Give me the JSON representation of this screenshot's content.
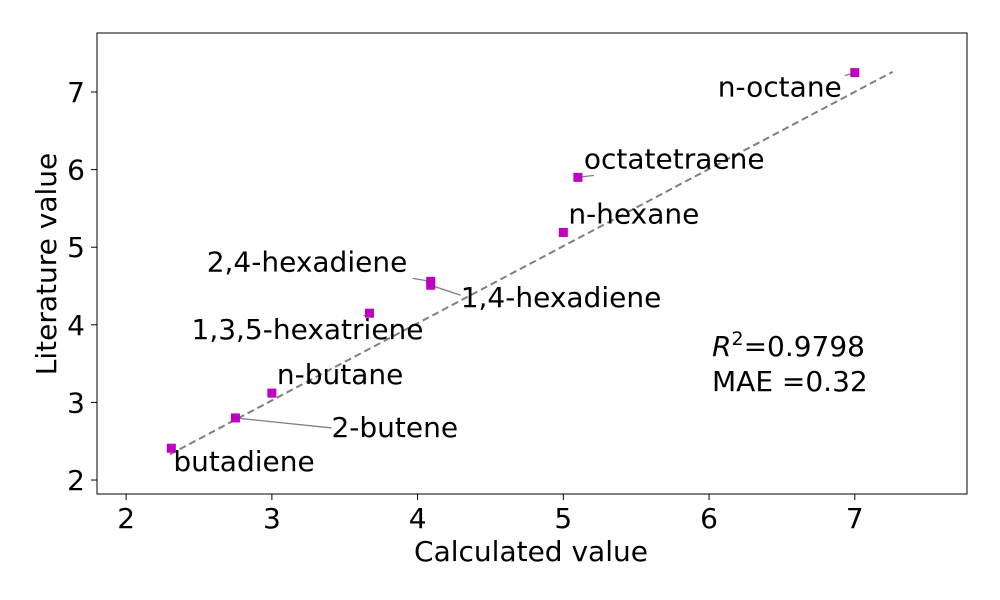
{
  "chart_data": {
    "type": "scatter",
    "title": "",
    "xlabel": "Calculated value",
    "ylabel": "Literature value",
    "xlim": [
      1.8,
      7.77
    ],
    "ylim": [
      1.82,
      7.76
    ],
    "xticks": [
      2,
      3,
      4,
      5,
      6,
      7
    ],
    "yticks": [
      2,
      3,
      4,
      5,
      6,
      7
    ],
    "grid": false,
    "marker": "square",
    "marker_color": "#c000c0",
    "fit_line": {
      "style": "dashed",
      "color": "#7f7f7f",
      "x": [
        2.3,
        7.26
      ],
      "y": [
        2.33,
        7.26
      ]
    },
    "points": [
      {
        "name": "butadiene",
        "x": 2.31,
        "y": 2.41
      },
      {
        "name": "2-butene",
        "x": 2.75,
        "y": 2.8
      },
      {
        "name": "n-butane",
        "x": 3.0,
        "y": 3.12
      },
      {
        "name": "1,3,5-hexatriene",
        "x": 3.67,
        "y": 4.15
      },
      {
        "name": "2,4-hexadiene",
        "x": 4.09,
        "y": 4.56
      },
      {
        "name": "1,4-hexadiene",
        "x": 4.09,
        "y": 4.51
      },
      {
        "name": "n-hexane",
        "x": 5.0,
        "y": 5.19
      },
      {
        "name": "octatetraene",
        "x": 5.1,
        "y": 5.9
      },
      {
        "name": "n-octane",
        "x": 7.0,
        "y": 7.25
      }
    ],
    "stats": {
      "r2_label": "R",
      "r2_exponent": "2",
      "r2_value": "=0.9798",
      "mae": "MAE =0.32"
    }
  }
}
